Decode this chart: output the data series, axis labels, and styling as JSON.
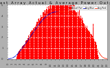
{
  "title": "E a s t   A r r a y   A c t u a l   &   A v e r a g e   P o w e r   O u t p u t",
  "bg_color": "#b0b0b0",
  "plot_bg_color": "#ffffff",
  "bar_color": "#ff0000",
  "avg_line_color_blue": "#0000cc",
  "avg_line_color_red": "#ff2200",
  "grid_color": "#c8c8c8",
  "grid_style": "--",
  "num_bars": 288,
  "scale": 5.0,
  "title_color": "#000000",
  "title_fontsize": 3.8,
  "tick_fontsize": 2.8,
  "yticks": [
    0,
    1,
    2,
    3,
    4,
    5
  ],
  "ylabel_right_fontsize": 2.8
}
